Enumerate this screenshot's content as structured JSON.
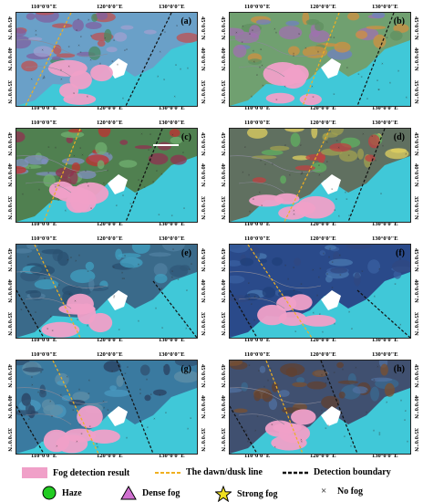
{
  "panels": [
    {
      "label": "(a)",
      "lon": [
        "110°0'0\"E",
        "120°0'0\"E",
        "130°0'0\"E"
      ],
      "lat": [
        "35°0'0\"N",
        "40°0'0\"N",
        "45°0'0\"N"
      ]
    },
    {
      "label": "(b)",
      "lon": [
        "110°0'0\"E",
        "120°0'0\"E",
        "130°0'0\"E"
      ],
      "lat": [
        "35°0'0\"N",
        "40°0'0\"N",
        "45°0'0\"N"
      ]
    },
    {
      "label": "(c)",
      "lon": [
        "110°0'0\"E",
        "120°0'0\"E",
        "130°0'0\"E"
      ],
      "lat": [
        "35°0'0\"N",
        "40°0'0\"N",
        "45°0'0\"N"
      ]
    },
    {
      "label": "(d)",
      "lon": [
        "110°0'0\"E",
        "120°0'0\"E",
        "130°0'0\"E"
      ],
      "lat": [
        "35°0'0\"N",
        "40°0'0\"N",
        "45°0'0\"N"
      ]
    },
    {
      "label": "(e)",
      "lon": [
        "110°0'0\"E",
        "120°0'0\"E",
        "130°0'0\"E"
      ],
      "lat": [
        "35°0'0\"N",
        "40°0'0\"N",
        "45°0'0\"N"
      ]
    },
    {
      "label": "(f)",
      "lon": [
        "110°0'0\"E",
        "120°0'0\"E",
        "130°0'0\"E"
      ],
      "lat": [
        "35°0'0\"N",
        "40°0'0\"N",
        "45°0'0\"N"
      ]
    },
    {
      "label": "(g)",
      "lon": [
        "110°0'0\"E",
        "120°0'0\"E",
        "130°0'0\"E"
      ],
      "lat": [
        "35°0'0\"N",
        "40°0'0\"N",
        "45°0'0\"N"
      ]
    },
    {
      "label": "(h)",
      "lon": [
        "110°0'0\"E",
        "120°0'0\"E",
        "130°0'0\"E"
      ],
      "lat": [
        "35°0'0\"N",
        "40°0'0\"N",
        "45°0'0\"N"
      ]
    }
  ],
  "legend": {
    "fog_detection": "Fog detection result",
    "dawn_dusk": "The dawn/dusk line",
    "detection_boundary": "Detection boundary",
    "haze": "Haze",
    "dense_fog": "Dense fog",
    "strong_fog": "Strong fog",
    "no_fog": "No fog"
  },
  "colors": {
    "sea": "#40c8d8",
    "fog": "#f0a0c8",
    "dawn_line": "#f0b020",
    "boundary": "#111111",
    "haze": "#22cc22",
    "dense": "#d070d0",
    "strong": "#f0e020"
  }
}
